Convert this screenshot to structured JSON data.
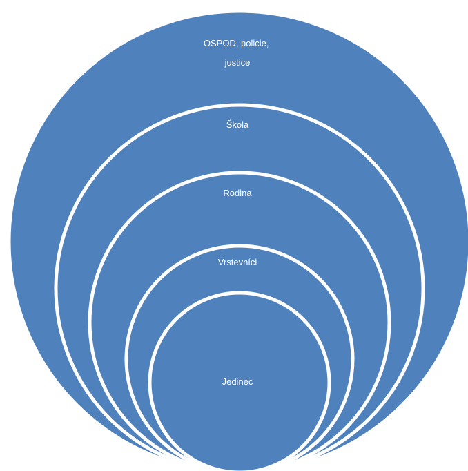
{
  "diagram": {
    "type": "nested-circles",
    "fill_color": "#4f81bd",
    "border_color": "#ffffff",
    "levels": [
      {
        "label_lines": [
          "OSPOD, policie,",
          "justice"
        ]
      },
      {
        "label_lines": [
          "Škola"
        ]
      },
      {
        "label_lines": [
          "Rodina"
        ]
      },
      {
        "label_lines": [
          "Vrstevníci"
        ]
      },
      {
        "label_lines": [
          "Jedinec"
        ]
      }
    ]
  }
}
